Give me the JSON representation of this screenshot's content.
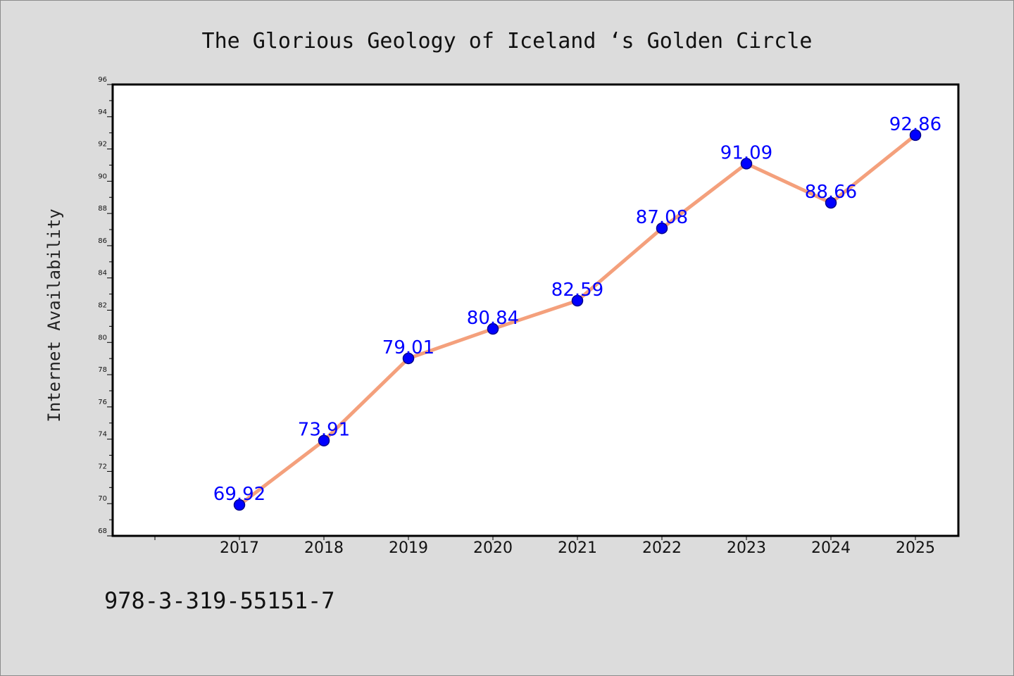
{
  "chart_data": {
    "type": "line",
    "title": "The Glorious Geology of Iceland ‘s Golden Circle",
    "xlabel": "",
    "ylabel": "Internet Availability",
    "categories": [
      "2017",
      "2018",
      "2019",
      "2020",
      "2021",
      "2022",
      "2023",
      "2024",
      "2025"
    ],
    "series": [
      {
        "values": [
          69.92,
          73.91,
          79.01,
          80.84,
          82.59,
          87.08,
          91.09,
          88.66,
          92.86
        ],
        "labels": [
          "69.92",
          "73.91",
          "79.01",
          "80.84",
          "82.59",
          "87.08",
          "91.09",
          "88.66",
          "92.86"
        ]
      }
    ],
    "ylim": [
      68,
      96
    ],
    "yticks": [
      "68",
      "70",
      "72",
      "74",
      "76",
      "78",
      "80",
      "82",
      "84",
      "86",
      "88",
      "90",
      "92",
      "94",
      "96"
    ],
    "grid": false,
    "colors": {
      "line": "#f4a07c",
      "marker": "#0000ff",
      "marker_edge": "#00008b",
      "data_label": "#0000ff",
      "background": "#dcdcdc",
      "plot_background": "#ffffff"
    }
  },
  "footer": {
    "isbn": "978-3-319-55151-7"
  }
}
